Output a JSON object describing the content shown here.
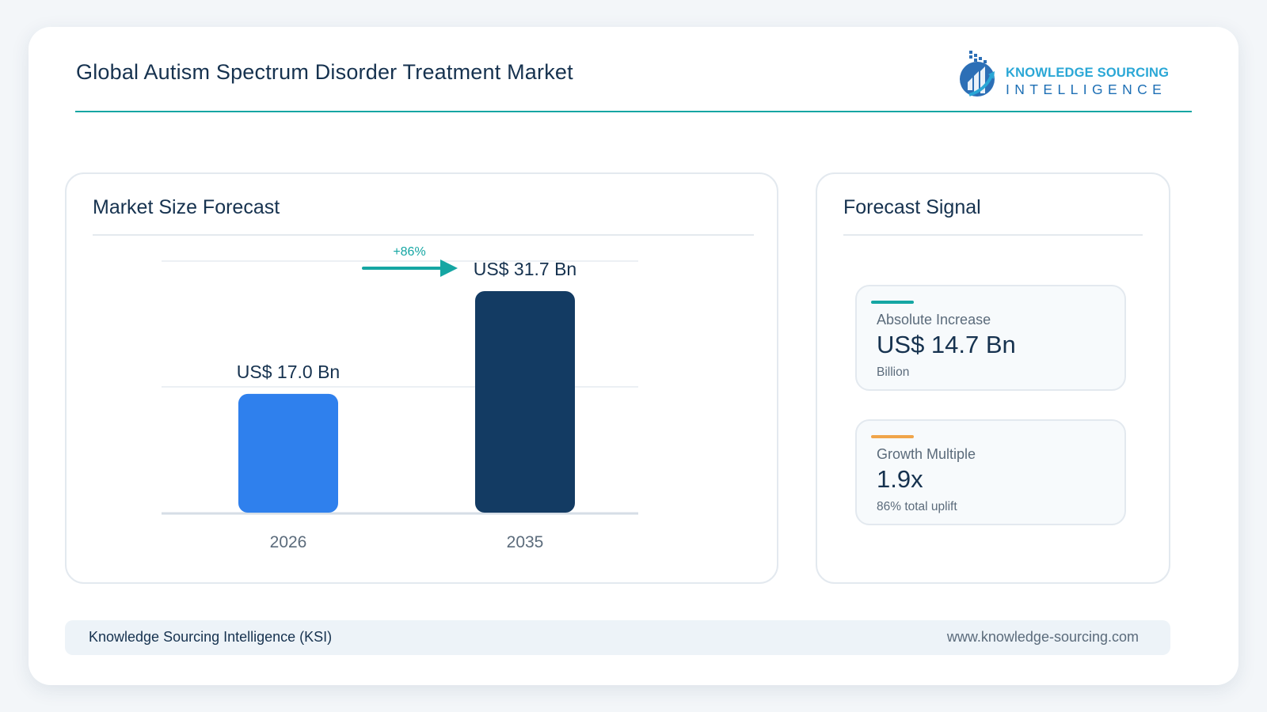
{
  "header": {
    "title": "Global Autism Spectrum Disorder Treatment Market",
    "logo_line1": "KNOWLEDGE SOURCING",
    "logo_line2": "INTELLIGENCE"
  },
  "left_panel": {
    "title": "Market Size Forecast"
  },
  "right_panel": {
    "title": "Forecast Signal",
    "metrics": [
      {
        "label": "Absolute Increase",
        "value": "US$ 14.7 Bn",
        "sub": "Billion",
        "accent": "#15a6a3"
      },
      {
        "label": "Growth Multiple",
        "value": "1.9x",
        "sub": "86% total uplift",
        "accent": "#f0a54a"
      }
    ]
  },
  "footer": {
    "left": "Knowledge Sourcing Intelligence (KSI)",
    "right": "www.knowledge-sourcing.com"
  },
  "chart_data": {
    "type": "bar",
    "categories": [
      "2026",
      "2035"
    ],
    "values": [
      17.0,
      31.7
    ],
    "data_labels": [
      "US$ 17.0 Bn",
      "US$ 31.7 Bn"
    ],
    "colors": [
      "#2f80ed",
      "#133b63"
    ],
    "growth_label": "+86%",
    "growth_color": "#15a6a3",
    "ylim": [
      0,
      36
    ],
    "gridlines": [
      18,
      36
    ],
    "title": "",
    "xlabel": "",
    "ylabel": ""
  }
}
